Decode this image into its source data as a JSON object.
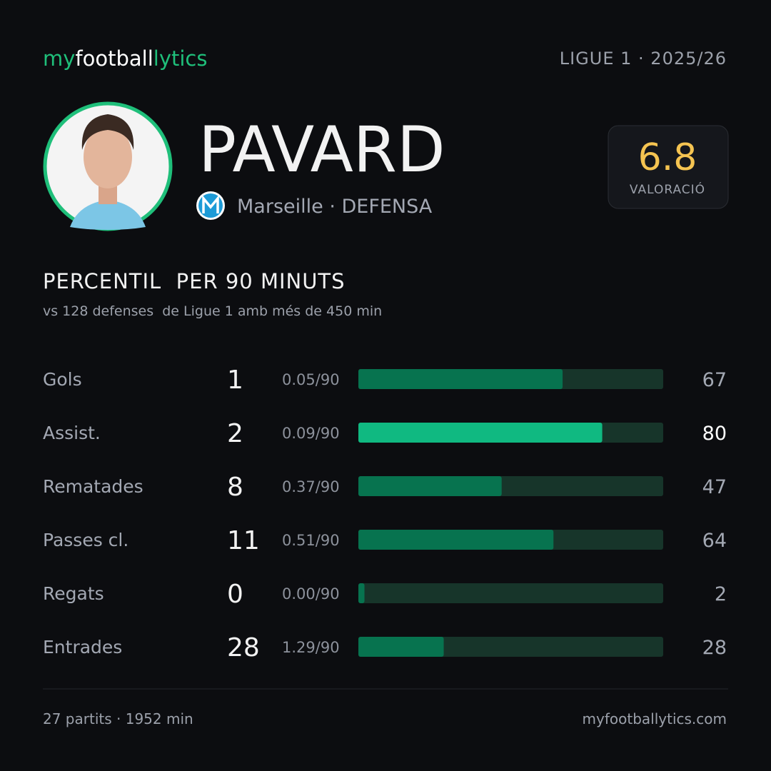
{
  "logo": {
    "parts": [
      "my",
      "football",
      "lytics"
    ]
  },
  "competition": "LIGUE 1 · 2025/26",
  "player": {
    "name": "PAVARD",
    "team_line": "Marseille · DEFENSA"
  },
  "rating": {
    "value": "6.8",
    "label": "VALORACIÓ"
  },
  "section": {
    "title": "PERCENTIL  PER 90 MINUTS",
    "subtitle": "vs 128 defenses  de Ligue 1 amb més de 450 min"
  },
  "stats": {
    "xlim": [
      0,
      100
    ],
    "rows": [
      {
        "label": "Gols",
        "count": 1,
        "per90": "0.05/90",
        "percentile": 67,
        "color": "#07734f"
      },
      {
        "label": "Assist.",
        "count": 2,
        "per90": "0.09/90",
        "percentile": 80,
        "color": "#10b981"
      },
      {
        "label": "Rematades",
        "count": 8,
        "per90": "0.37/90",
        "percentile": 47,
        "color": "#07734f"
      },
      {
        "label": "Passes cl.",
        "count": 11,
        "per90": "0.51/90",
        "percentile": 64,
        "color": "#07734f"
      },
      {
        "label": "Regats",
        "count": 0,
        "per90": "0.00/90",
        "percentile": 2,
        "color": "#07734f"
      },
      {
        "label": "Entrades",
        "count": 28,
        "per90": "1.29/90",
        "percentile": 28,
        "color": "#07734f"
      }
    ]
  },
  "footer": {
    "left": "27 partits · 1952 min",
    "right": "myfootballytics.com"
  }
}
